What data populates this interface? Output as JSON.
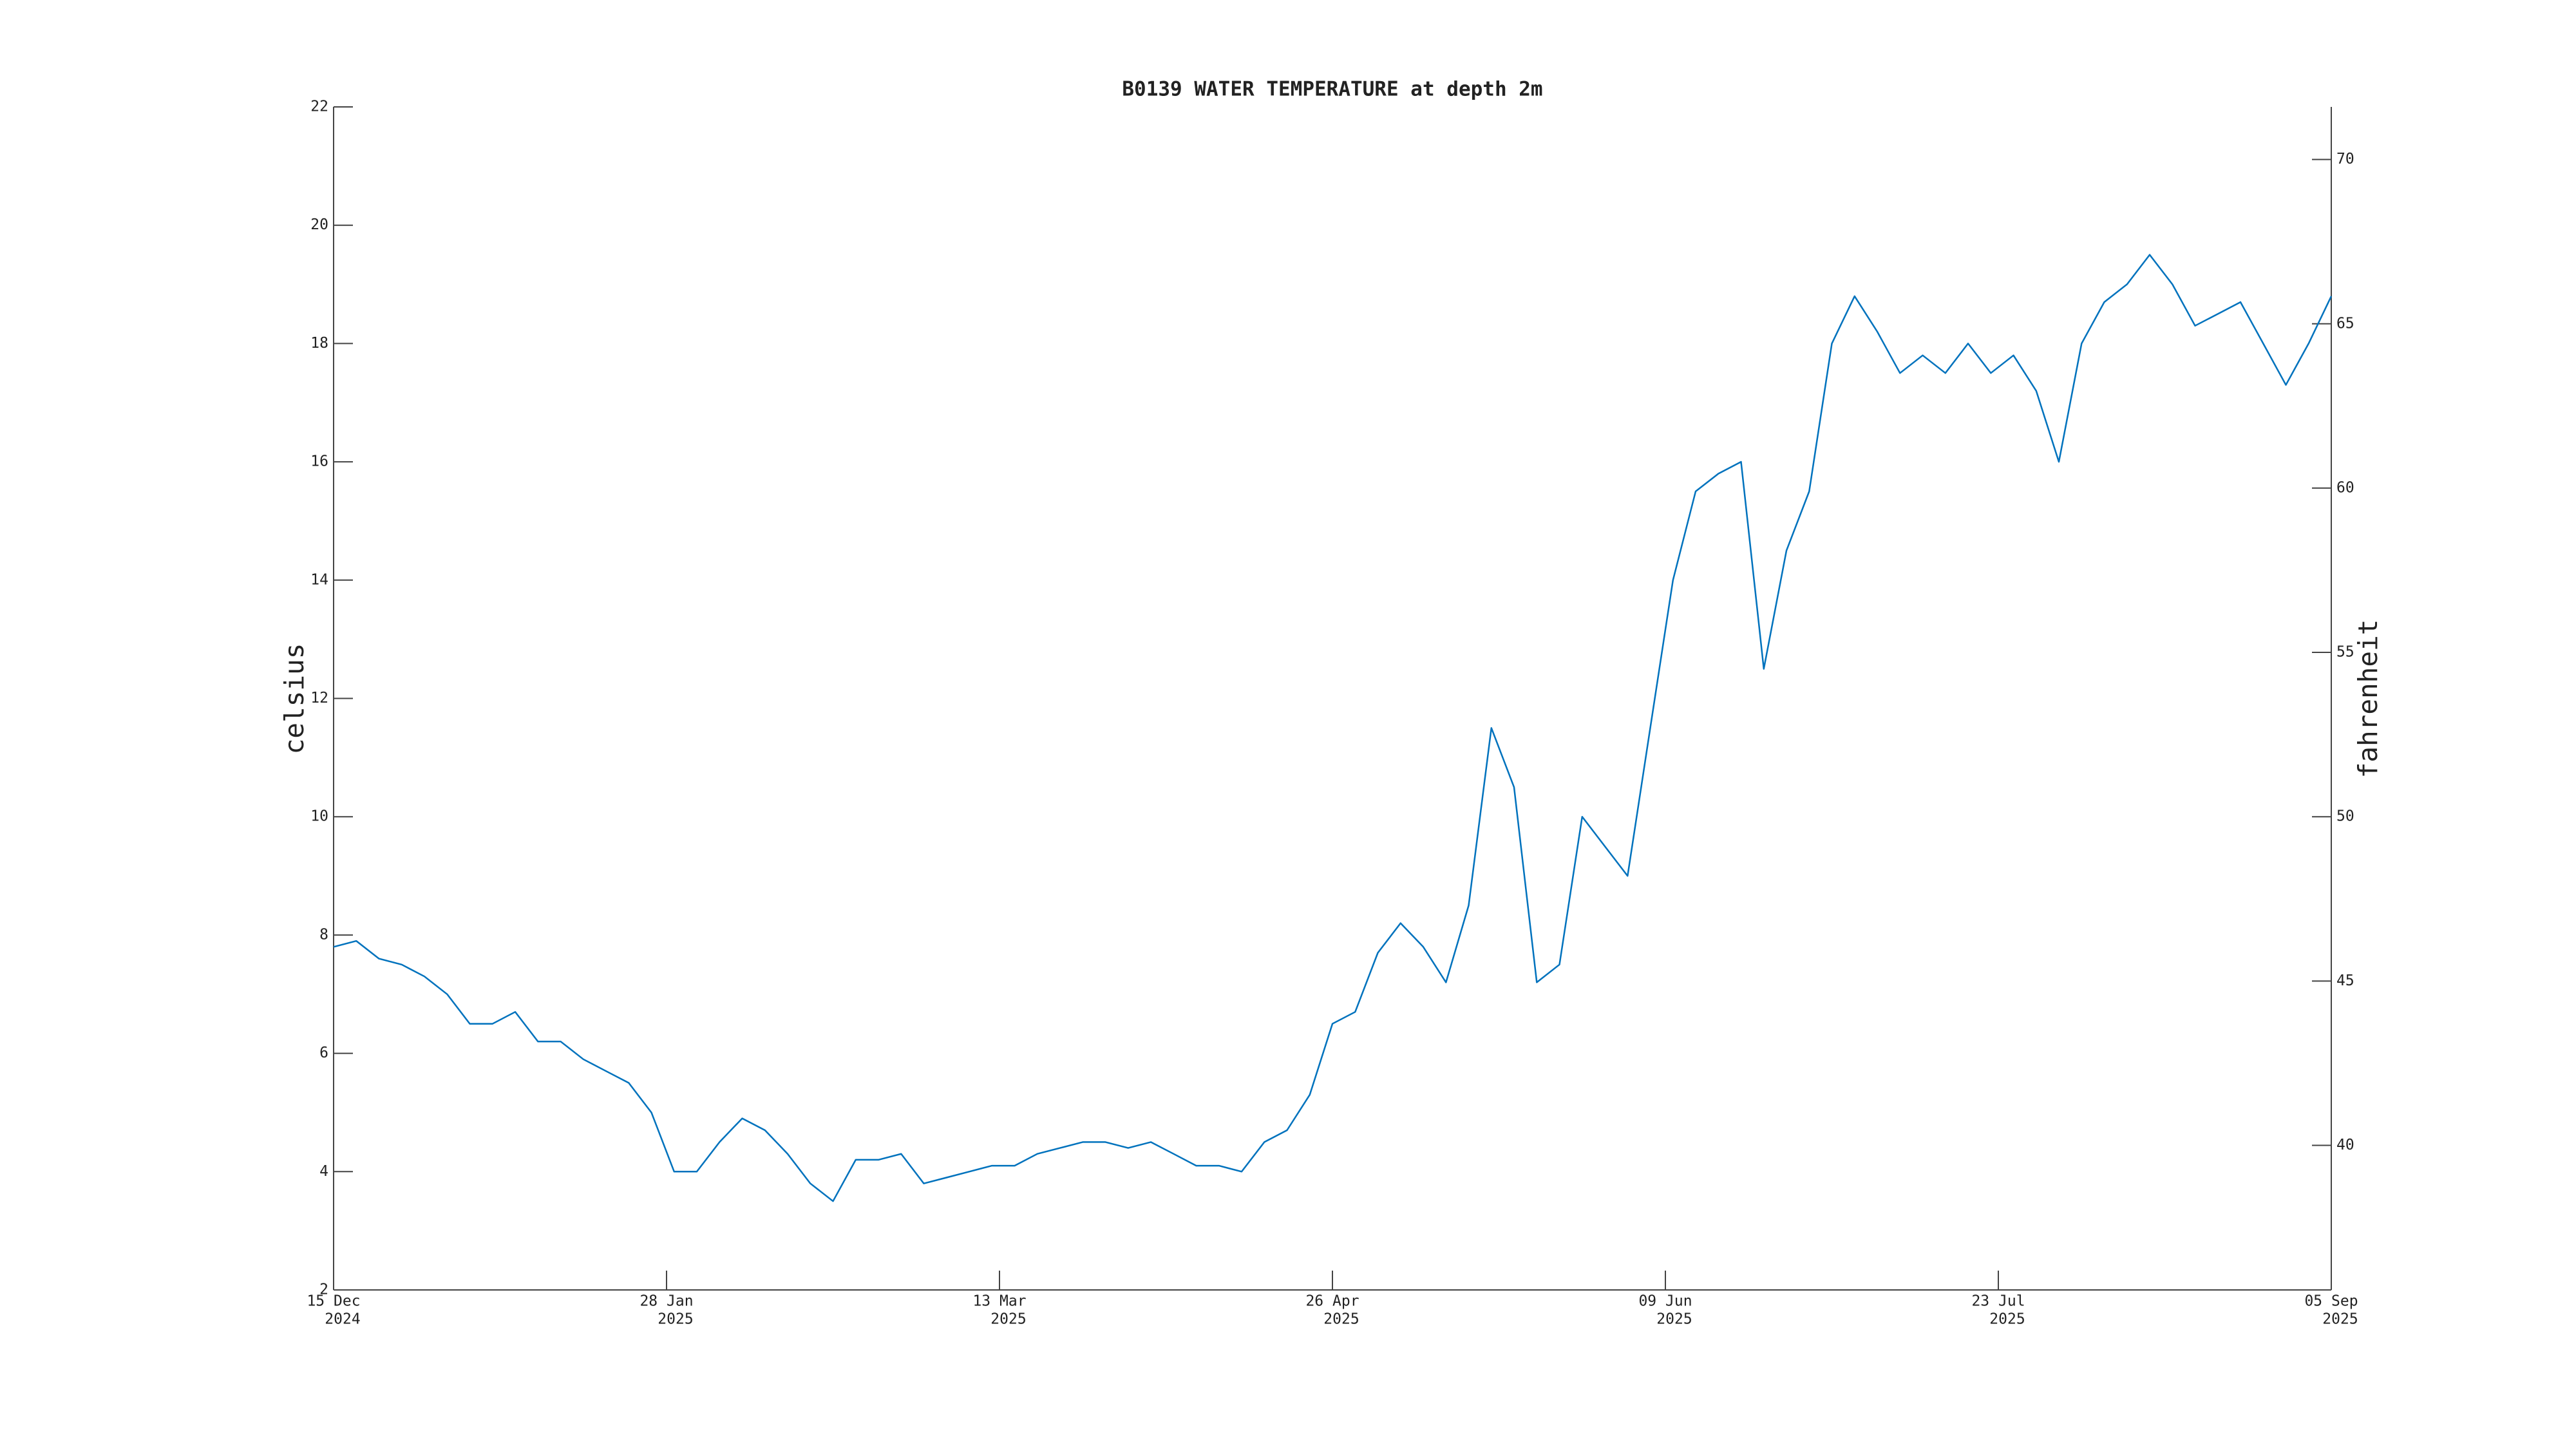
{
  "chart_data": {
    "type": "line",
    "title": "B0139 WATER TEMPERATURE at depth 2m",
    "y_label": "celsius",
    "y2_label": "fahrenheit",
    "x": [
      "2024-12-15",
      "2024-12-18",
      "2024-12-21",
      "2024-12-24",
      "2024-12-27",
      "2024-12-30",
      "2025-01-02",
      "2025-01-05",
      "2025-01-08",
      "2025-01-11",
      "2025-01-14",
      "2025-01-17",
      "2025-01-20",
      "2025-01-23",
      "2025-01-26",
      "2025-01-29",
      "2025-02-01",
      "2025-02-04",
      "2025-02-07",
      "2025-02-10",
      "2025-02-13",
      "2025-02-16",
      "2025-02-19",
      "2025-02-22",
      "2025-02-25",
      "2025-02-28",
      "2025-03-03",
      "2025-03-06",
      "2025-03-09",
      "2025-03-12",
      "2025-03-15",
      "2025-03-18",
      "2025-03-21",
      "2025-03-24",
      "2025-03-27",
      "2025-03-30",
      "2025-04-02",
      "2025-04-05",
      "2025-04-08",
      "2025-04-11",
      "2025-04-14",
      "2025-04-17",
      "2025-04-20",
      "2025-04-23",
      "2025-04-26",
      "2025-04-29",
      "2025-05-02",
      "2025-05-05",
      "2025-05-08",
      "2025-05-11",
      "2025-05-14",
      "2025-05-17",
      "2025-05-20",
      "2025-05-23",
      "2025-05-26",
      "2025-05-29",
      "2025-06-01",
      "2025-06-04",
      "2025-06-07",
      "2025-06-10",
      "2025-06-13",
      "2025-06-16",
      "2025-06-19",
      "2025-06-22",
      "2025-06-25",
      "2025-06-28",
      "2025-07-01",
      "2025-07-04",
      "2025-07-07",
      "2025-07-10",
      "2025-07-13",
      "2025-07-16",
      "2025-07-19",
      "2025-07-22",
      "2025-07-25",
      "2025-07-28",
      "2025-07-31",
      "2025-08-03",
      "2025-08-06",
      "2025-08-09",
      "2025-08-12",
      "2025-08-15",
      "2025-08-18",
      "2025-08-21",
      "2025-08-24",
      "2025-08-27",
      "2025-08-30",
      "2025-09-02",
      "2025-09-05"
    ],
    "series": [
      {
        "name": "celsius",
        "color": "#0072bd",
        "values": [
          7.8,
          7.9,
          7.6,
          7.5,
          7.3,
          7.0,
          6.5,
          6.5,
          6.7,
          6.2,
          6.2,
          5.9,
          5.7,
          5.5,
          5.0,
          4.0,
          4.0,
          4.5,
          4.9,
          4.7,
          4.3,
          3.8,
          3.5,
          4.2,
          4.2,
          4.3,
          3.8,
          3.9,
          4.0,
          4.1,
          4.1,
          4.3,
          4.4,
          4.5,
          4.5,
          4.4,
          4.5,
          4.3,
          4.1,
          4.1,
          4.0,
          4.5,
          4.7,
          5.3,
          6.5,
          6.7,
          7.7,
          8.2,
          7.8,
          7.2,
          8.5,
          11.5,
          10.5,
          7.2,
          7.5,
          10.0,
          9.5,
          9.0,
          11.5,
          14.0,
          15.5,
          15.8,
          16.0,
          12.5,
          14.5,
          15.5,
          18.0,
          18.8,
          18.2,
          17.5,
          17.8,
          17.5,
          18.0,
          17.5,
          17.8,
          17.2,
          16.0,
          18.0,
          18.7,
          19.0,
          19.5,
          19.0,
          18.3,
          18.5,
          18.7,
          18.0,
          17.3,
          18.0,
          18.8
        ]
      }
    ],
    "xlim": [
      "2024-12-15",
      "2025-09-05"
    ],
    "xticks": [
      {
        "value": "2024-12-15",
        "label": "15 Dec",
        "sublabel": "2024"
      },
      {
        "value": "2025-01-28",
        "label": "28 Jan",
        "sublabel": "2025"
      },
      {
        "value": "2025-03-13",
        "label": "13 Mar",
        "sublabel": "2025"
      },
      {
        "value": "2025-04-26",
        "label": "26 Apr",
        "sublabel": "2025"
      },
      {
        "value": "2025-06-09",
        "label": "09 Jun",
        "sublabel": "2025"
      },
      {
        "value": "2025-07-23",
        "label": "23 Jul",
        "sublabel": "2025"
      },
      {
        "value": "2025-09-05",
        "label": "05 Sep",
        "sublabel": "2025"
      }
    ],
    "ylim": [
      2,
      22
    ],
    "yticks": [
      2,
      4,
      6,
      8,
      10,
      12,
      14,
      16,
      18,
      20,
      22
    ],
    "y2lim": [
      35.6,
      71.6
    ],
    "y2ticks": [
      40,
      45,
      50,
      55,
      60,
      65,
      70
    ],
    "grid": false
  }
}
